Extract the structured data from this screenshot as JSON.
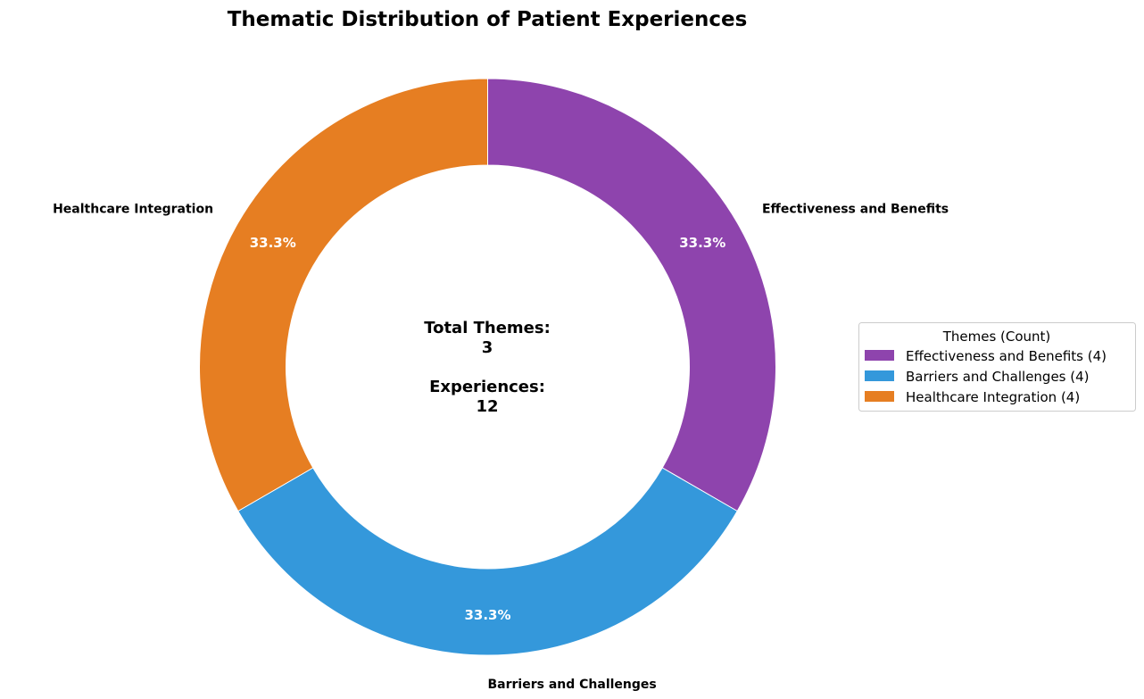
{
  "chart_data": {
    "type": "pie",
    "title": "Thematic Distribution of Patient Experiences",
    "donut": true,
    "start_angle_deg": 90,
    "direction": "clockwise",
    "categories": [
      "Effectiveness and Benefits",
      "Barriers and Challenges",
      "Healthcare Integration"
    ],
    "values": [
      4,
      4,
      4
    ],
    "percent_labels": [
      "33.3%",
      "33.3%",
      "33.3%"
    ],
    "colors": [
      "#8e44ad",
      "#3498db",
      "#e67e22"
    ],
    "center_text": {
      "line1": "Total Themes:",
      "line2": "3",
      "line3": "Experiences:",
      "line4": "12"
    },
    "legend": {
      "title": "Themes (Count)",
      "placement": "right",
      "entries": [
        "Effectiveness and Benefits (4)",
        "Barriers and Challenges (4)",
        "Healthcare Integration (4)"
      ]
    }
  }
}
